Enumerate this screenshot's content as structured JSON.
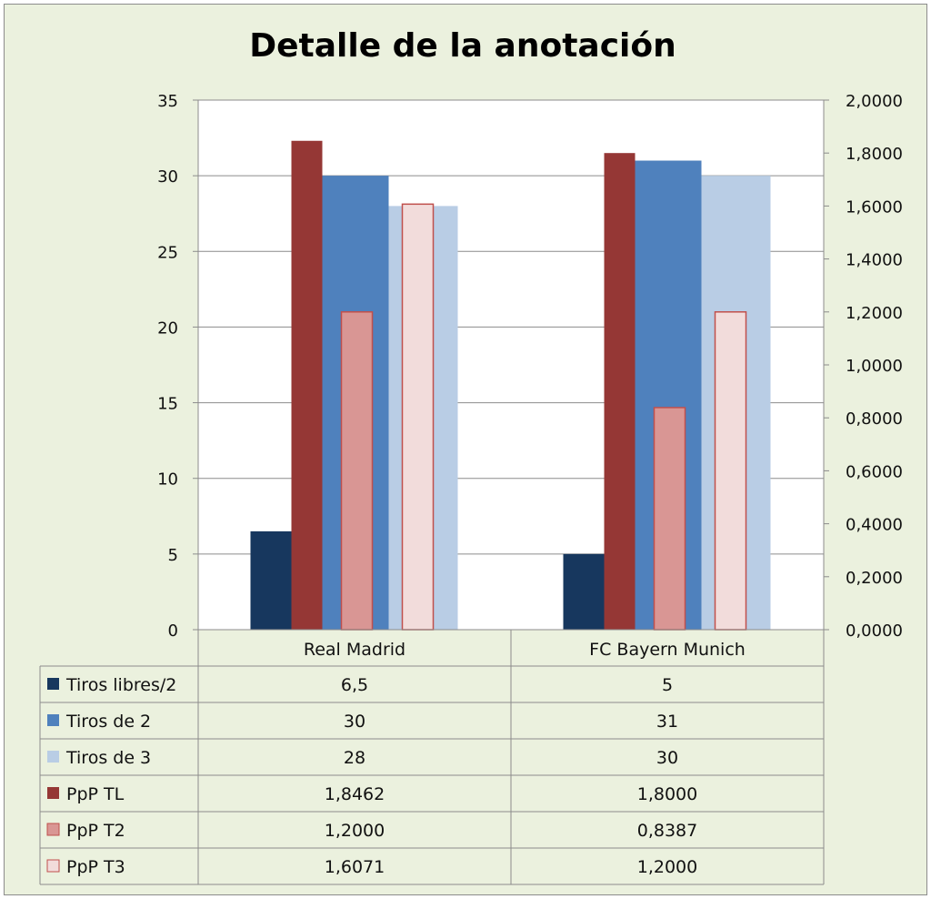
{
  "chart_data": {
    "type": "bar",
    "title": "Detalle de la anotación",
    "categories": [
      "Real Madrid",
      "FC Bayern Munich"
    ],
    "y_left": {
      "ylim": [
        0,
        35
      ],
      "ticks": [
        "0",
        "5",
        "10",
        "15",
        "20",
        "25",
        "30",
        "35"
      ],
      "tick_values": [
        0,
        5,
        10,
        15,
        20,
        25,
        30,
        35
      ]
    },
    "y_right": {
      "ylim": [
        0,
        2
      ],
      "ticks": [
        "0,0000",
        "0,2000",
        "0,4000",
        "0,6000",
        "0,8000",
        "1,0000",
        "1,2000",
        "1,4000",
        "1,6000",
        "1,8000",
        "2,0000"
      ],
      "tick_values": [
        0,
        0.2,
        0.4,
        0.6,
        0.8,
        1.0,
        1.2,
        1.4,
        1.6,
        1.8,
        2.0
      ]
    },
    "grid": true,
    "legend": "data-table",
    "series": [
      {
        "name": "Tiros libres/2",
        "axis": "left",
        "color": "#17375e",
        "values": [
          6.5,
          5
        ],
        "labels": [
          "6,5",
          "5"
        ]
      },
      {
        "name": "Tiros de 2",
        "axis": "left",
        "color": "#4f81bd",
        "values": [
          30,
          31
        ],
        "labels": [
          "30",
          "31"
        ]
      },
      {
        "name": "Tiros de 3",
        "axis": "left",
        "color": "#b9cde5",
        "values": [
          28,
          30
        ],
        "labels": [
          "28",
          "30"
        ]
      },
      {
        "name": "PpP TL",
        "axis": "right",
        "color": "#953735",
        "values": [
          1.8462,
          1.8
        ],
        "labels": [
          "1,8462",
          "1,8000"
        ]
      },
      {
        "name": "PpP T2",
        "axis": "right",
        "color": "#d99694",
        "values": [
          1.2,
          0.8387
        ],
        "labels": [
          "1,2000",
          "0,8387"
        ]
      },
      {
        "name": "PpP T3",
        "axis": "right",
        "color": "#f2dcdb",
        "values": [
          1.6071,
          1.2
        ],
        "labels": [
          "1,6071",
          "1,2000"
        ]
      }
    ]
  }
}
